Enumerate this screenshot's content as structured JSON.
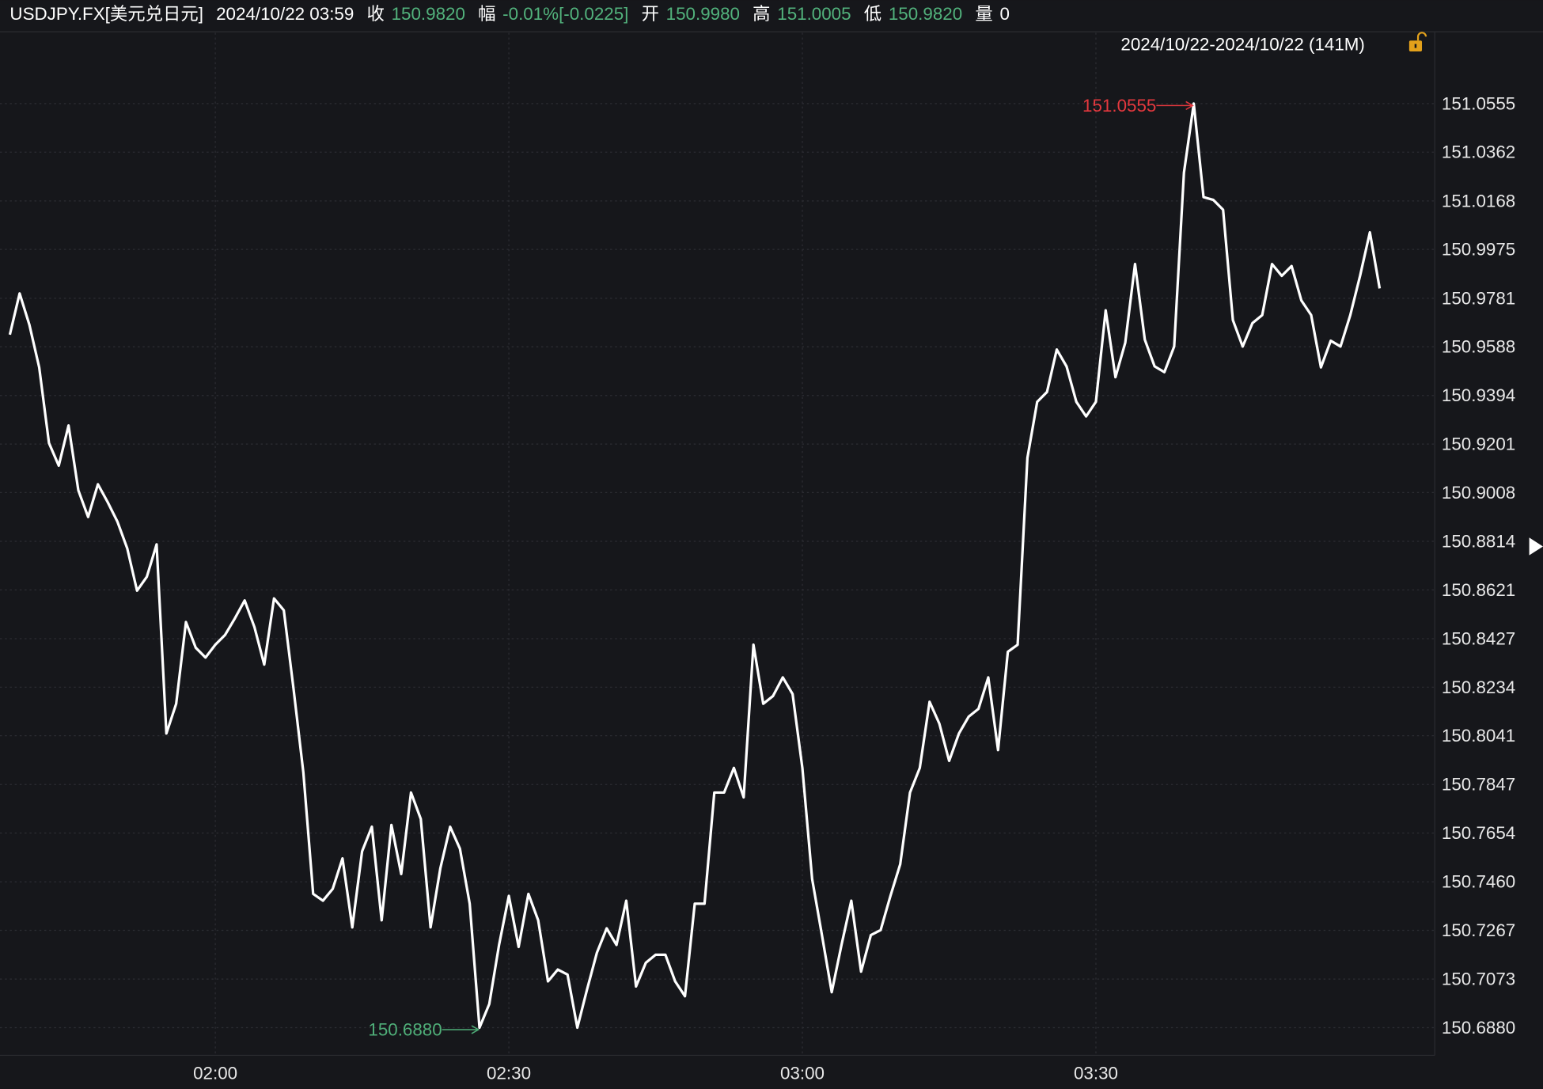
{
  "header": {
    "symbol": "USDJPY.FX[美元兑日元]",
    "datetime": "2024/10/22 03:59",
    "close_label": "收",
    "close": "150.9820",
    "change_label": "幅",
    "change": "-0.01%[-0.0225]",
    "open_label": "开",
    "open": "150.9980",
    "high_label": "高",
    "high": "151.0005",
    "low_label": "低",
    "low": "150.9820",
    "volume_label": "量",
    "volume": "0",
    "range": "2024/10/22-2024/10/22 (141M)"
  },
  "chart_data": {
    "type": "line",
    "color": "#ffffff",
    "grid": true,
    "categories": [
      null,
      null,
      null,
      null,
      null,
      null,
      null,
      null,
      null,
      null,
      null,
      null,
      null,
      null,
      null,
      null,
      null,
      null,
      null,
      null,
      null,
      "02:00",
      null,
      null,
      null,
      null,
      null,
      null,
      null,
      null,
      null,
      null,
      null,
      null,
      null,
      null,
      null,
      null,
      null,
      null,
      null,
      null,
      null,
      null,
      null,
      null,
      null,
      null,
      null,
      null,
      null,
      "02:30",
      null,
      null,
      null,
      null,
      null,
      null,
      null,
      null,
      null,
      null,
      null,
      null,
      null,
      null,
      null,
      null,
      null,
      null,
      null,
      null,
      null,
      null,
      null,
      null,
      null,
      null,
      null,
      null,
      null,
      "03:00",
      null,
      null,
      null,
      null,
      null,
      null,
      null,
      null,
      null,
      null,
      null,
      null,
      null,
      null,
      null,
      null,
      null,
      null,
      null,
      null,
      null,
      null,
      null,
      null,
      null,
      null,
      null,
      null,
      null,
      "03:30",
      null,
      null,
      null,
      null,
      null,
      null,
      null,
      null,
      null,
      null,
      null,
      null,
      null,
      null,
      null,
      null,
      null,
      null,
      null,
      null,
      null,
      null,
      null,
      null,
      null,
      null,
      null,
      null,
      null
    ],
    "values": [
      150.9636,
      150.98,
      150.9675,
      150.9506,
      150.9205,
      150.9115,
      150.9275,
      150.9017,
      150.8911,
      150.9041,
      150.897,
      150.8892,
      150.8786,
      150.8618,
      150.8673,
      150.8802,
      150.805,
      150.8168,
      150.8493,
      150.8391,
      150.8352,
      150.8403,
      150.8442,
      150.8508,
      150.8579,
      150.8473,
      150.8324,
      150.8587,
      150.854,
      150.8226,
      150.7894,
      150.7412,
      150.7385,
      150.7432,
      150.7553,
      150.7279,
      150.7581,
      150.7679,
      150.7307,
      150.7686,
      150.7491,
      150.7815,
      150.771,
      150.7279,
      150.7514,
      150.7679,
      150.7592,
      150.7373,
      150.688,
      150.6974,
      150.7209,
      150.7404,
      150.7201,
      150.7412,
      150.7307,
      150.7064,
      150.7111,
      150.7091,
      150.688,
      150.7033,
      150.7178,
      150.7275,
      150.7209,
      150.7385,
      150.7044,
      150.7138,
      150.717,
      150.717,
      150.7064,
      150.7005,
      150.7373,
      150.7373,
      150.7815,
      150.7815,
      150.7913,
      150.7796,
      150.8403,
      150.8168,
      150.8199,
      150.8273,
      150.8207,
      150.7913,
      150.7471,
      150.7248,
      150.7021,
      150.7209,
      150.7385,
      150.7103,
      150.7248,
      150.7268,
      150.7404,
      150.753,
      150.7815,
      150.7913,
      150.8176,
      150.8089,
      150.7941,
      150.805,
      150.8117,
      150.8148,
      150.8273,
      150.7984,
      150.8375,
      150.8403,
      150.9146,
      150.9369,
      150.9408,
      150.9577,
      150.951,
      150.9369,
      150.9311,
      150.9369,
      150.9733,
      150.9467,
      150.9604,
      150.9917,
      150.9616,
      150.951,
      150.9487,
      150.9589,
      151.0281,
      151.0555,
      151.0183,
      151.0172,
      151.0133,
      150.9694,
      150.9589,
      150.9682,
      150.9714,
      150.9917,
      150.987,
      150.9909,
      150.9772,
      150.9714,
      150.9506,
      150.9612,
      150.9589,
      150.9714,
      150.987,
      151.0043,
      150.982
    ],
    "ylim": [
      150.677,
      151.0837
    ],
    "yticks": [
      {
        "value": 150.688,
        "label": "150.6880"
      },
      150.7073,
      150.7267,
      {
        "value": 150.746,
        "label": "150.7460"
      },
      150.7654,
      150.7847,
      150.8041,
      150.8234,
      150.8427,
      150.8621,
      150.8814,
      150.9008,
      150.9201,
      150.9394,
      150.9588,
      150.9781,
      150.9975,
      151.0168,
      151.0362,
      151.0555
    ],
    "high_annotation": "151.0555",
    "low_annotation": "150.6880"
  }
}
